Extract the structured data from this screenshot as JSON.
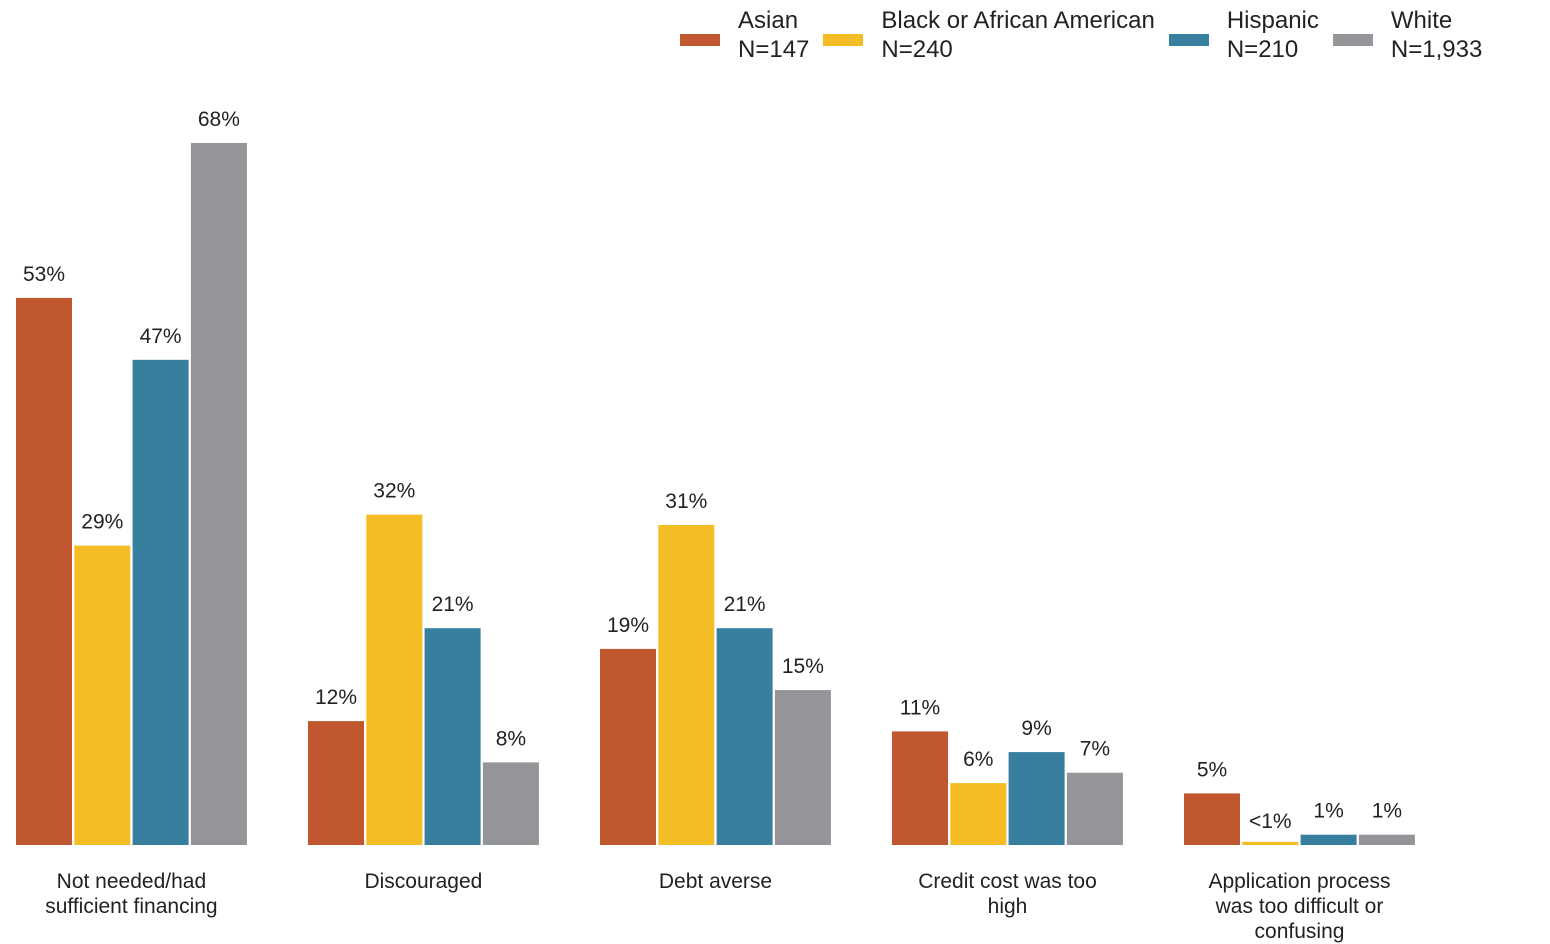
{
  "colors": {
    "asian": "#C0572F",
    "black": "#F5BD25",
    "hispanic": "#377E9F",
    "white": "#939598"
  },
  "legend": [
    {
      "name": "Asian",
      "n": "N=147",
      "color_key": "asian"
    },
    {
      "name": "Black or African American",
      "n": "N=240",
      "color_key": "black"
    },
    {
      "name": "Hispanic",
      "n": "N=210",
      "color_key": "hispanic"
    },
    {
      "name": "White",
      "n": "N=1,933",
      "color_key": "white"
    }
  ],
  "chart_data": {
    "type": "bar",
    "title": "",
    "xlabel": "",
    "ylabel": "",
    "ylim": [
      0,
      68
    ],
    "grid": false,
    "legend_position": "top-right",
    "categories": [
      [
        "Not needed/had",
        "sufficient financing"
      ],
      [
        "Discouraged"
      ],
      [
        "Debt averse"
      ],
      [
        "Credit cost was too",
        "high"
      ],
      [
        "Application process",
        "was too difficult or",
        "confusing"
      ]
    ],
    "series": [
      {
        "name": "Asian",
        "values": [
          53,
          12,
          19,
          11,
          5
        ],
        "labels": [
          "53%",
          "12%",
          "19%",
          "11%",
          "5%"
        ]
      },
      {
        "name": "Black or African American",
        "values": [
          29,
          32,
          31,
          6,
          0.3
        ],
        "labels": [
          "29%",
          "32%",
          "31%",
          "6%",
          "<1%"
        ]
      },
      {
        "name": "Hispanic",
        "values": [
          47,
          21,
          21,
          9,
          1
        ],
        "labels": [
          "47%",
          "21%",
          "21%",
          "9%",
          "1%"
        ]
      },
      {
        "name": "White",
        "values": [
          68,
          8,
          15,
          7,
          1
        ],
        "labels": [
          "68%",
          "8%",
          "15%",
          "7%",
          "1%"
        ]
      }
    ]
  }
}
